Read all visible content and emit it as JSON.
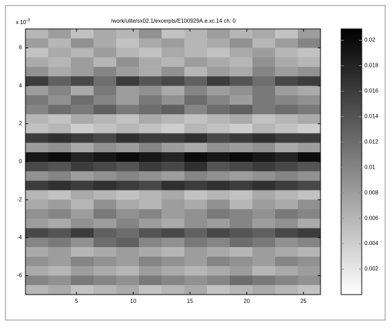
{
  "chart_data": {
    "type": "heatmap",
    "title": "/work/ulite/sx02.1/excerpts/E100929A.e.xc.14 ch: 0",
    "y_multiplier": {
      "base": "x 10",
      "exponent": "-3"
    },
    "x": [
      1.5,
      3.5,
      5.5,
      7.5,
      9.5,
      11.5,
      13.5,
      15.5,
      17.5,
      19.5,
      21.5,
      23.5,
      25.5
    ],
    "y": [
      6.75,
      6.25,
      5.75,
      5.25,
      4.75,
      4.25,
      3.75,
      3.25,
      2.75,
      2.25,
      1.75,
      1.25,
      0.75,
      0.25,
      -0.25,
      -0.75,
      -1.25,
      -1.75,
      -2.25,
      -2.75,
      -3.25,
      -3.75,
      -4.25,
      -4.75,
      -5.25,
      -5.75,
      -6.25,
      -6.75
    ],
    "z": [
      [
        0.006,
        0.008,
        0.005,
        0.007,
        0.006,
        0.009,
        0.005,
        0.006,
        0.008,
        0.006,
        0.007,
        0.005,
        0.008
      ],
      [
        0.008,
        0.006,
        0.009,
        0.007,
        0.005,
        0.007,
        0.008,
        0.006,
        0.007,
        0.009,
        0.006,
        0.008,
        0.01
      ],
      [
        0.005,
        0.007,
        0.006,
        0.008,
        0.006,
        0.005,
        0.007,
        0.006,
        0.005,
        0.007,
        0.008,
        0.006,
        0.005
      ],
      [
        0.007,
        0.006,
        0.008,
        0.006,
        0.009,
        0.007,
        0.006,
        0.008,
        0.007,
        0.006,
        0.009,
        0.007,
        0.006
      ],
      [
        0.009,
        0.007,
        0.008,
        0.01,
        0.008,
        0.007,
        0.009,
        0.006,
        0.008,
        0.007,
        0.01,
        0.008,
        0.009
      ],
      [
        0.016,
        0.013,
        0.015,
        0.012,
        0.016,
        0.014,
        0.015,
        0.013,
        0.016,
        0.014,
        0.012,
        0.015,
        0.016
      ],
      [
        0.008,
        0.01,
        0.007,
        0.011,
        0.008,
        0.009,
        0.007,
        0.01,
        0.008,
        0.009,
        0.011,
        0.008,
        0.007
      ],
      [
        0.011,
        0.009,
        0.012,
        0.01,
        0.008,
        0.011,
        0.009,
        0.012,
        0.01,
        0.008,
        0.011,
        0.01,
        0.009
      ],
      [
        0.01,
        0.012,
        0.011,
        0.013,
        0.011,
        0.012,
        0.013,
        0.01,
        0.012,
        0.013,
        0.011,
        0.012,
        0.011
      ],
      [
        0.006,
        0.005,
        0.007,
        0.006,
        0.005,
        0.007,
        0.006,
        0.005,
        0.006,
        0.007,
        0.005,
        0.006,
        0.007
      ],
      [
        0.005,
        0.006,
        0.004,
        0.005,
        0.006,
        0.005,
        0.004,
        0.006,
        0.005,
        0.004,
        0.006,
        0.005,
        0.004
      ],
      [
        0.016,
        0.017,
        0.016,
        0.015,
        0.017,
        0.016,
        0.016,
        0.017,
        0.015,
        0.016,
        0.017,
        0.016,
        0.016
      ],
      [
        0.008,
        0.009,
        0.007,
        0.009,
        0.008,
        0.01,
        0.008,
        0.007,
        0.009,
        0.008,
        0.009,
        0.007,
        0.008
      ],
      [
        0.019,
        0.02,
        0.018,
        0.019,
        0.02,
        0.019,
        0.018,
        0.02,
        0.019,
        0.02,
        0.019,
        0.018,
        0.02
      ],
      [
        0.015,
        0.014,
        0.016,
        0.015,
        0.014,
        0.016,
        0.015,
        0.017,
        0.014,
        0.015,
        0.016,
        0.015,
        0.014
      ],
      [
        0.009,
        0.01,
        0.008,
        0.009,
        0.01,
        0.009,
        0.008,
        0.01,
        0.009,
        0.008,
        0.009,
        0.01,
        0.009
      ],
      [
        0.016,
        0.017,
        0.016,
        0.017,
        0.016,
        0.015,
        0.017,
        0.016,
        0.017,
        0.016,
        0.017,
        0.016,
        0.015
      ],
      [
        0.006,
        0.005,
        0.007,
        0.006,
        0.005,
        0.006,
        0.007,
        0.005,
        0.006,
        0.005,
        0.007,
        0.006,
        0.005
      ],
      [
        0.007,
        0.008,
        0.006,
        0.009,
        0.007,
        0.006,
        0.008,
        0.007,
        0.009,
        0.006,
        0.008,
        0.007,
        0.009
      ],
      [
        0.009,
        0.01,
        0.008,
        0.011,
        0.009,
        0.01,
        0.008,
        0.009,
        0.011,
        0.01,
        0.009,
        0.011,
        0.01
      ],
      [
        0.008,
        0.007,
        0.009,
        0.008,
        0.01,
        0.008,
        0.007,
        0.009,
        0.008,
        0.01,
        0.008,
        0.009,
        0.007
      ],
      [
        0.015,
        0.014,
        0.016,
        0.013,
        0.012,
        0.014,
        0.015,
        0.013,
        0.015,
        0.014,
        0.013,
        0.015,
        0.016
      ],
      [
        0.01,
        0.011,
        0.009,
        0.012,
        0.013,
        0.01,
        0.009,
        0.011,
        0.01,
        0.012,
        0.011,
        0.009,
        0.01
      ],
      [
        0.007,
        0.008,
        0.006,
        0.007,
        0.008,
        0.007,
        0.006,
        0.008,
        0.007,
        0.006,
        0.008,
        0.007,
        0.006
      ],
      [
        0.009,
        0.008,
        0.01,
        0.009,
        0.008,
        0.01,
        0.009,
        0.008,
        0.01,
        0.009,
        0.008,
        0.01,
        0.009
      ],
      [
        0.007,
        0.006,
        0.008,
        0.007,
        0.006,
        0.008,
        0.007,
        0.006,
        0.007,
        0.008,
        0.006,
        0.007,
        0.008
      ],
      [
        0.01,
        0.009,
        0.011,
        0.01,
        0.009,
        0.011,
        0.01,
        0.009,
        0.01,
        0.012,
        0.011,
        0.01,
        0.009
      ],
      [
        0.006,
        0.007,
        0.005,
        0.006,
        0.007,
        0.005,
        0.006,
        0.007,
        0.005,
        0.006,
        0.007,
        0.006,
        0.005
      ]
    ],
    "xlim": [
      0.5,
      26.5
    ],
    "ylim": [
      -7,
      7
    ],
    "xticks": [
      5,
      10,
      15,
      20,
      25
    ],
    "yticks": [
      -6,
      -4,
      -2,
      0,
      2,
      4,
      6
    ],
    "clim": [
      0,
      0.0209
    ],
    "cticks": [
      0.002,
      0.004,
      0.006,
      0.008,
      0.01,
      0.012,
      0.014,
      0.016,
      0.018,
      0.02
    ],
    "colormap": [
      "#ffffff",
      "#000000"
    ]
  }
}
